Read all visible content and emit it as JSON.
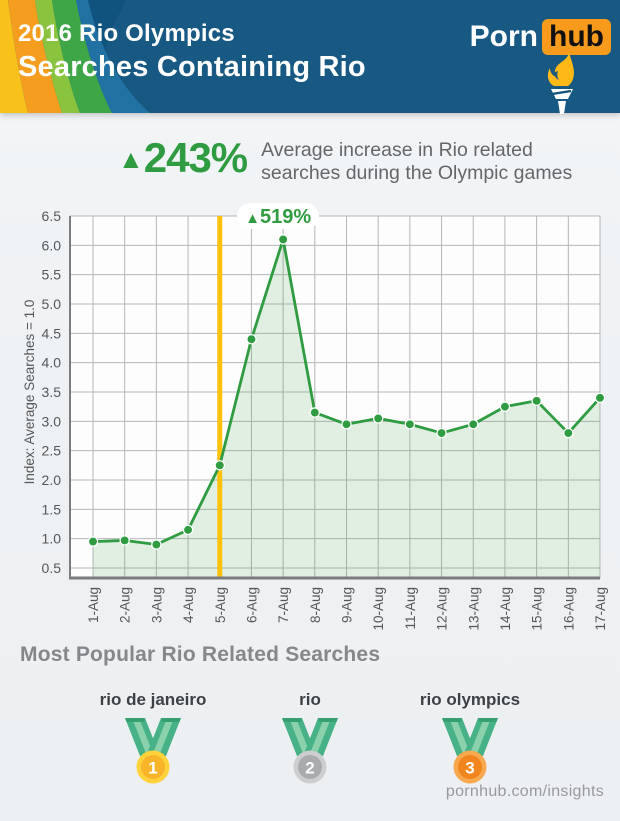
{
  "header": {
    "title_line1": "2016 Rio Olympics",
    "title_line2": "Searches Containing Rio",
    "logo_part1": "Porn",
    "logo_part2": "hub",
    "logo_box_color": "#f89b1c",
    "background_color": "#0f537e",
    "stripe_colors": [
      "#f8c21b",
      "#f59d1f",
      "#8ac43f",
      "#3fa648",
      "#2172a3"
    ]
  },
  "stat": {
    "arrow": "▲",
    "value": "243%",
    "description_line1": "Average increase in Rio related",
    "description_line2": "searches during the Olympic games",
    "accent_color": "#2f9c41"
  },
  "chart_data": {
    "type": "area",
    "categories": [
      "1-Aug",
      "2-Aug",
      "3-Aug",
      "4-Aug",
      "5-Aug",
      "6-Aug",
      "7-Aug",
      "8-Aug",
      "9-Aug",
      "10-Aug",
      "11-Aug",
      "12-Aug",
      "13-Aug",
      "14-Aug",
      "15-Aug",
      "16-Aug",
      "17-Aug"
    ],
    "values": [
      0.95,
      0.97,
      0.9,
      1.15,
      2.25,
      4.4,
      6.1,
      3.15,
      2.95,
      3.05,
      2.95,
      2.8,
      2.95,
      3.25,
      3.35,
      2.8,
      3.4
    ],
    "title": "",
    "xlabel": "",
    "ylabel": "Index: Average Searches = 1.0",
    "ylim": [
      0.5,
      6.5
    ],
    "ytick_step": 0.5,
    "grid": true,
    "line_color": "#2f9c41",
    "area_fill": "rgba(68,160,76,0.15)",
    "grid_color": "#b4b6b8",
    "axis_color": "#7a7c7f",
    "tick_label_color": "#55585a",
    "annotation": {
      "text": "▲519%",
      "at": "7-Aug",
      "color": "#2f9c41"
    },
    "event_line": {
      "at": "5-Aug",
      "color": "#ffc20e"
    }
  },
  "popular": {
    "heading": "Most Popular Rio Related Searches",
    "ribbon": {
      "main": "#47b287",
      "stripe": "#8ad1ac",
      "fold": "#35a071"
    },
    "items": [
      {
        "rank": "1",
        "label": "rio de janeiro",
        "medal": "gold",
        "ring": "#ffd23c",
        "disc": "#f9b52a"
      },
      {
        "rank": "2",
        "label": "rio",
        "medal": "silver",
        "ring": "#cdced0",
        "disc": "#a9abae"
      },
      {
        "rank": "3",
        "label": "rio olympics",
        "medal": "bronze",
        "ring": "#f8a84e",
        "disc": "#f0861d"
      }
    ]
  },
  "footer": {
    "link": "pornhub.com/insights"
  }
}
